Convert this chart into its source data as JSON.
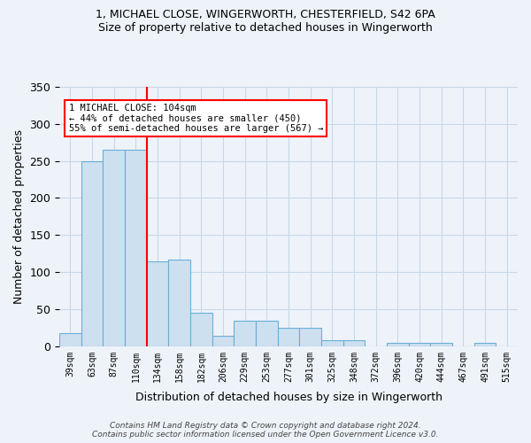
{
  "title_line1": "1, MICHAEL CLOSE, WINGERWORTH, CHESTERFIELD, S42 6PA",
  "title_line2": "Size of property relative to detached houses in Wingerworth",
  "xlabel": "Distribution of detached houses by size in Wingerworth",
  "ylabel": "Number of detached properties",
  "categories": [
    "39sqm",
    "63sqm",
    "87sqm",
    "110sqm",
    "134sqm",
    "158sqm",
    "182sqm",
    "206sqm",
    "229sqm",
    "253sqm",
    "277sqm",
    "301sqm",
    "325sqm",
    "348sqm",
    "372sqm",
    "396sqm",
    "420sqm",
    "444sqm",
    "467sqm",
    "491sqm",
    "515sqm"
  ],
  "bar_heights": [
    18,
    250,
    265,
    265,
    115,
    117,
    45,
    14,
    35,
    35,
    25,
    25,
    8,
    8,
    0,
    4,
    4,
    4,
    0,
    4,
    0
  ],
  "bar_color": "#cce0f0",
  "bar_edge_color": "#6baed6",
  "grid_color": "#c8d8e8",
  "background_color": "#eef3f9",
  "red_line_x": 3.5,
  "annotation_line1": "1 MICHAEL CLOSE: 104sqm",
  "annotation_line2": "← 44% of detached houses are smaller (450)",
  "annotation_line3": "55% of semi-detached houses are larger (567) →",
  "annotation_box_color": "white",
  "annotation_edge_color": "red",
  "ylim": [
    0,
    350
  ],
  "yticks": [
    0,
    50,
    100,
    150,
    200,
    250,
    300,
    350
  ],
  "footnote_line1": "Contains HM Land Registry data © Crown copyright and database right 2024.",
  "footnote_line2": "Contains public sector information licensed under the Open Government Licence v3.0.",
  "property_size_sqm": 104
}
